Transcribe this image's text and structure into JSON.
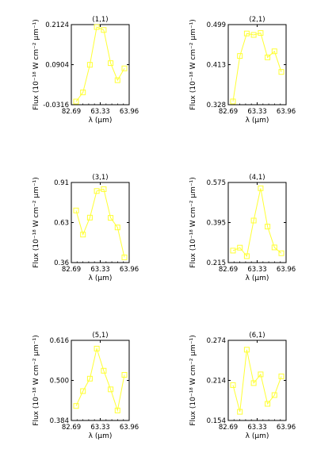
{
  "figure": {
    "xlabel": "λ (μm)",
    "ylabel": "Flux (10⁻¹⁸ W cm⁻² μm⁻¹)",
    "xticks": [
      "82.69",
      "63.33",
      "63.96"
    ],
    "series_color": "#ffff33"
  },
  "chart_data": [
    {
      "type": "line",
      "title": "(1,1)",
      "x": [
        1,
        2,
        3,
        4,
        5,
        6,
        7,
        8
      ],
      "values": [
        -0.022,
        0.006,
        0.09,
        0.205,
        0.196,
        0.095,
        0.043,
        0.079
      ],
      "ylim": [
        -0.0316,
        0.2124
      ],
      "yticks": [
        "0.2124",
        "0.0904",
        "-0.0316"
      ]
    },
    {
      "type": "line",
      "title": "(2,1)",
      "x": [
        1,
        2,
        3,
        4,
        5,
        6,
        7,
        8
      ],
      "values": [
        0.335,
        0.432,
        0.48,
        0.477,
        0.481,
        0.429,
        0.442,
        0.398
      ],
      "ylim": [
        0.328,
        0.499
      ],
      "yticks": [
        "0.499",
        "0.413",
        "0.328"
      ]
    },
    {
      "type": "line",
      "title": "(3,1)",
      "x": [
        1,
        2,
        3,
        4,
        5,
        6,
        7,
        8
      ],
      "values": [
        0.718,
        0.552,
        0.669,
        0.851,
        0.864,
        0.667,
        0.601,
        0.396
      ],
      "ylim": [
        0.36,
        0.91
      ],
      "yticks": [
        "0.91",
        "0.63",
        "0.36"
      ]
    },
    {
      "type": "line",
      "title": "(4,1)",
      "x": [
        1,
        2,
        3,
        4,
        5,
        6,
        7,
        8
      ],
      "values": [
        0.269,
        0.282,
        0.244,
        0.404,
        0.549,
        0.377,
        0.283,
        0.257
      ],
      "ylim": [
        0.215,
        0.575
      ],
      "yticks": [
        "0.575",
        "0.395",
        "0.215"
      ]
    },
    {
      "type": "line",
      "title": "(5,1)",
      "x": [
        1,
        2,
        3,
        4,
        5,
        6,
        7,
        8
      ],
      "values": [
        0.426,
        0.469,
        0.505,
        0.592,
        0.528,
        0.474,
        0.413,
        0.516
      ],
      "ylim": [
        0.384,
        0.616
      ],
      "yticks": [
        "0.616",
        "0.500",
        "0.384"
      ]
    },
    {
      "type": "line",
      "title": "(6,1)",
      "x": [
        1,
        2,
        3,
        4,
        5,
        6,
        7,
        8
      ],
      "values": [
        0.207,
        0.167,
        0.26,
        0.21,
        0.223,
        0.179,
        0.192,
        0.22
      ],
      "ylim": [
        0.154,
        0.274
      ],
      "yticks": [
        "0.274",
        "0.214",
        "0.154"
      ]
    }
  ]
}
